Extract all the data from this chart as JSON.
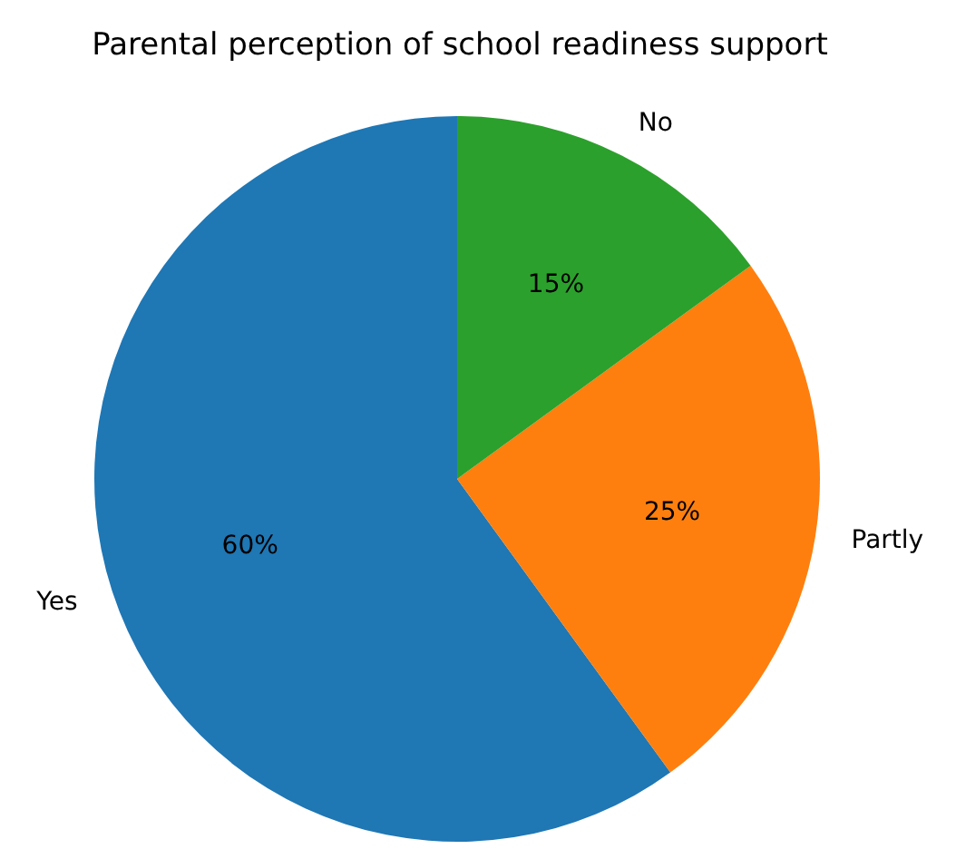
{
  "chart_data": {
    "type": "pie",
    "title": "Parental perception of school readiness support",
    "categories": [
      "Yes",
      "Partly",
      "No"
    ],
    "values": [
      60,
      25,
      15
    ],
    "colors": [
      "#1f77b4",
      "#ff7f0e",
      "#2ca02c"
    ],
    "value_labels": [
      "60%",
      "25%",
      "15%"
    ]
  }
}
